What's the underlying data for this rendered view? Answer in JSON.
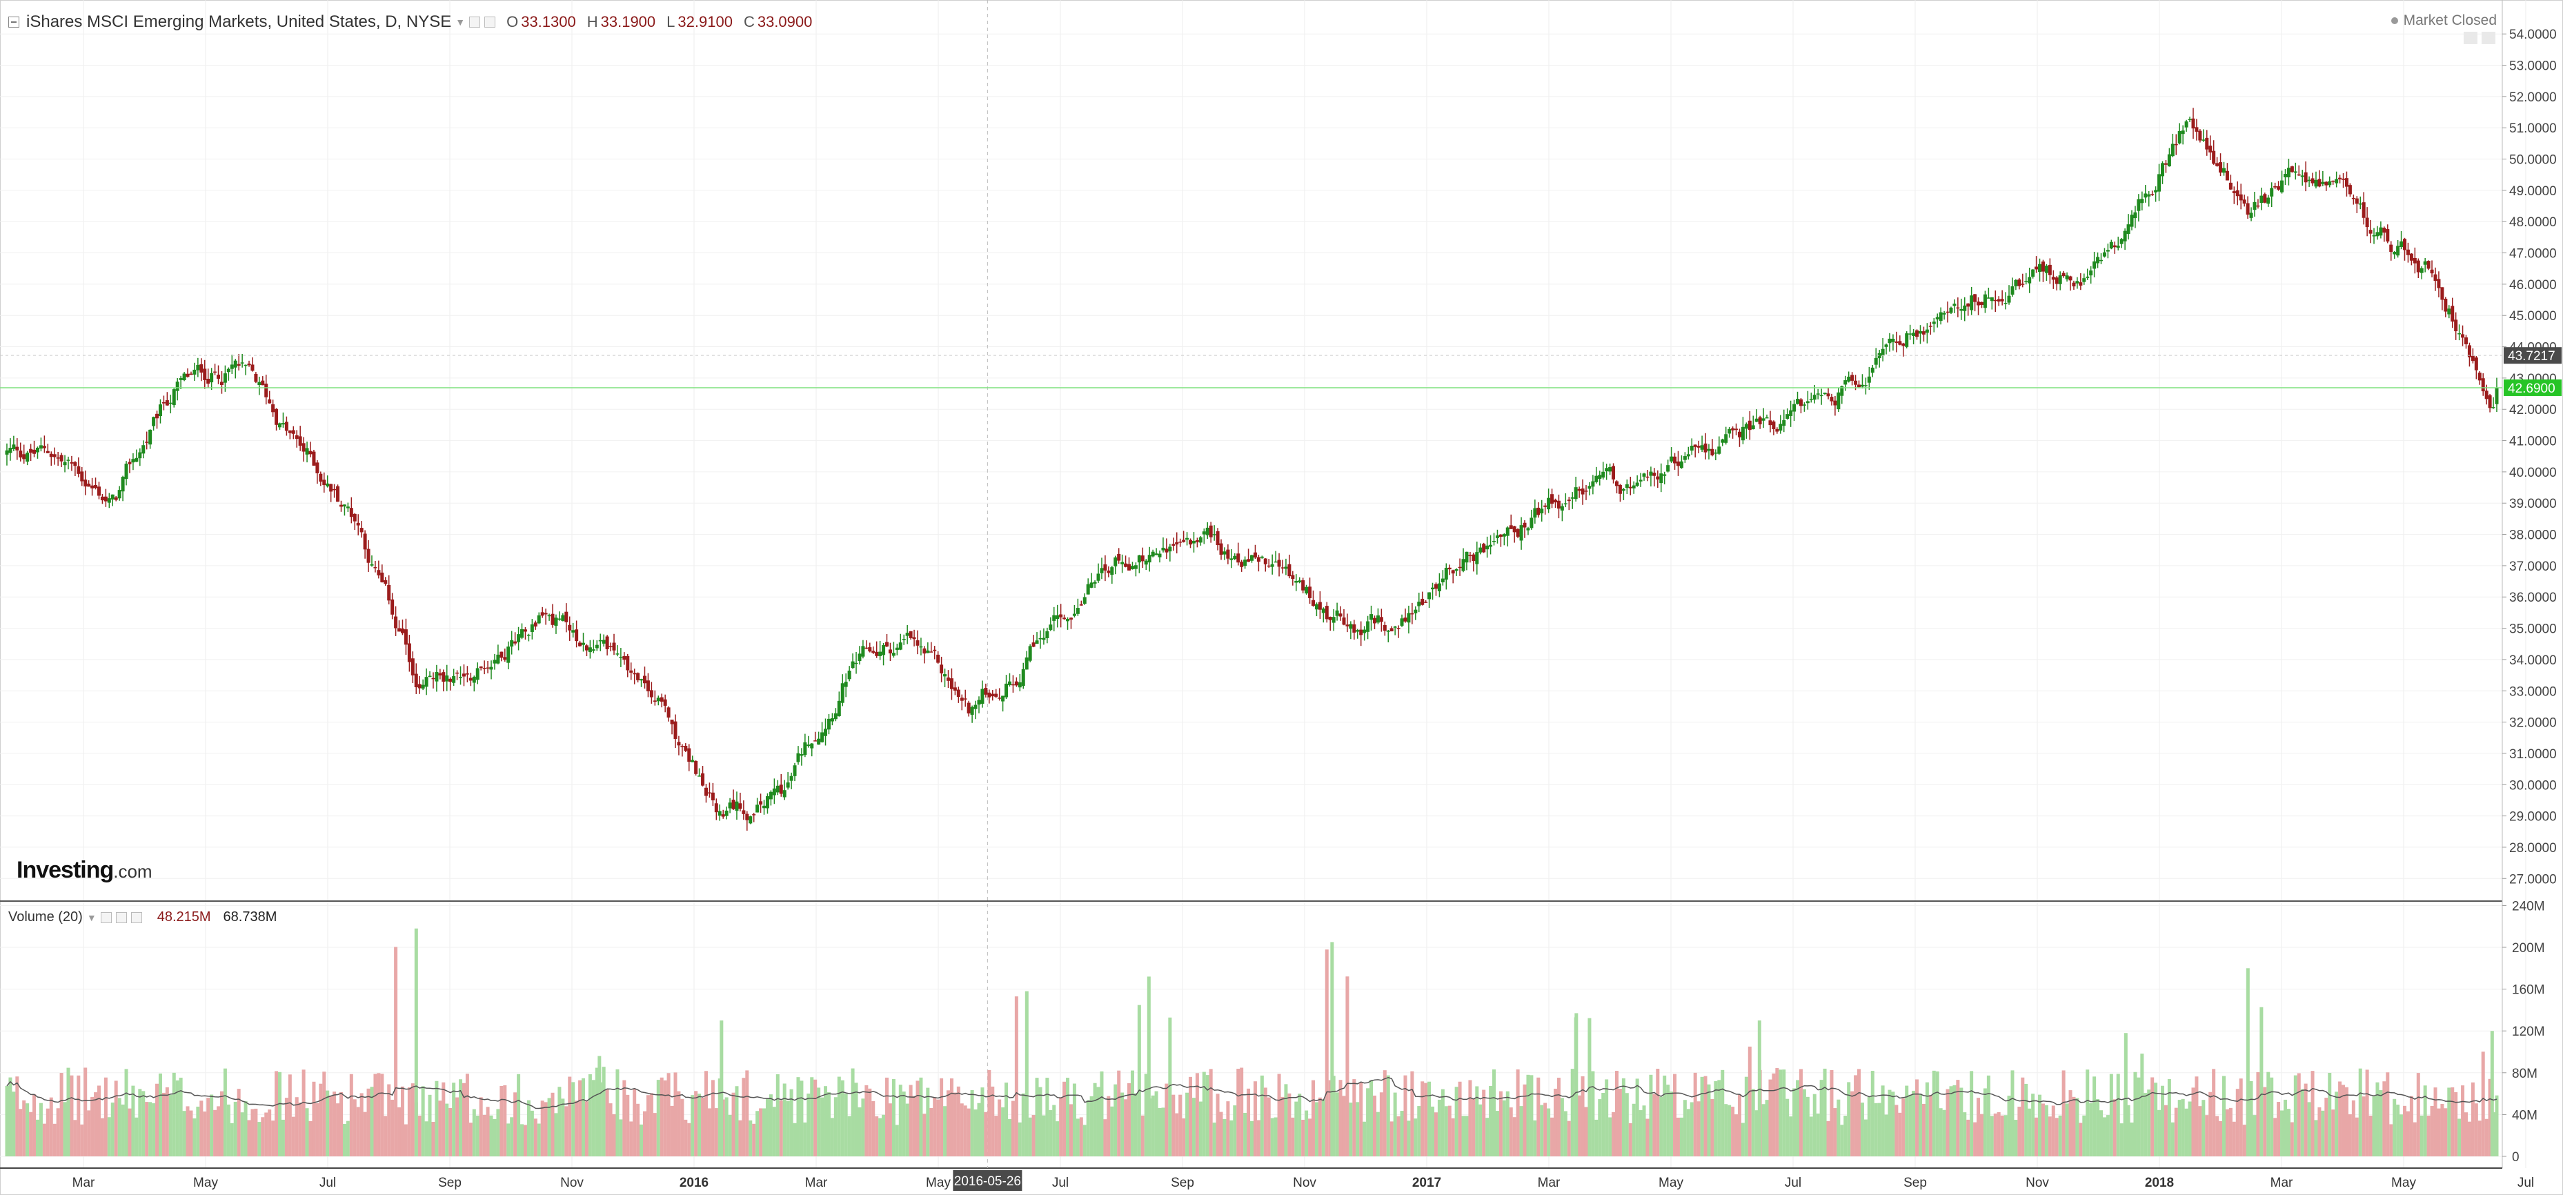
{
  "header": {
    "symbol_title": "iShares MSCI Emerging Markets, United States, D, NYSE",
    "ohlc": [
      {
        "label": "O",
        "value": "33.1300"
      },
      {
        "label": "H",
        "value": "33.1900"
      },
      {
        "label": "L",
        "value": "32.9100"
      },
      {
        "label": "C",
        "value": "33.0900"
      }
    ],
    "market_status": "Market Closed"
  },
  "volume_legend": {
    "title": "Volume (20)",
    "value1": "48.215M",
    "value2": "68.738M"
  },
  "logo": {
    "brand": "Investing",
    "suffix": ".com"
  },
  "crosshair": {
    "date_label": "2016-05-26"
  },
  "price_badges": {
    "marker": {
      "label": "43.7217",
      "value": 43.7217,
      "color": "#4a4a4a"
    },
    "last": {
      "label": "42.6900",
      "value": 42.69,
      "color": "#26c426"
    }
  },
  "colors": {
    "up": "#1f8a1f",
    "down": "#9b1c1c",
    "vol_up": "#a8dca2",
    "vol_down": "#e8a7a7",
    "ma": "#555555",
    "last_line": "#7fe07f"
  },
  "chart_data": [
    {
      "type": "candlestick",
      "title": "iShares MSCI Emerging Markets, United States, D, NYSE",
      "x_ticks": [
        "Mar",
        "May",
        "Jul",
        "Sep",
        "Nov",
        "2016",
        "Mar",
        "May",
        "Jul",
        "Sep",
        "Nov",
        "2017",
        "Mar",
        "May",
        "Jul",
        "Sep",
        "Nov",
        "2018",
        "Mar",
        "May",
        "Jul"
      ],
      "x_tick_bold": [
        "2016",
        "2017",
        "2018"
      ],
      "y_ticks": [
        "27.0000",
        "28.0000",
        "29.0000",
        "30.0000",
        "31.0000",
        "32.0000",
        "33.0000",
        "34.0000",
        "35.0000",
        "36.0000",
        "37.0000",
        "38.0000",
        "39.0000",
        "40.0000",
        "41.0000",
        "42.0000",
        "43.0000",
        "44.0000",
        "45.0000",
        "46.0000",
        "47.0000",
        "48.0000",
        "49.0000",
        "50.0000",
        "51.0000",
        "52.0000",
        "53.0000",
        "54.0000"
      ],
      "ylim": [
        26.3,
        54.6
      ],
      "x": [
        "2015-02",
        "2015-03",
        "2015-04",
        "2015-05",
        "2015-06",
        "2015-07",
        "2015-08",
        "2015-09",
        "2015-10",
        "2015-11",
        "2015-12",
        "2016-01",
        "2016-02",
        "2016-03",
        "2016-04",
        "2016-05",
        "2016-06",
        "2016-07",
        "2016-08",
        "2016-09",
        "2016-10",
        "2016-11",
        "2016-12",
        "2017-01",
        "2017-02",
        "2017-03",
        "2017-04",
        "2017-05",
        "2017-06",
        "2017-07",
        "2017-08",
        "2017-09",
        "2017-10",
        "2017-11",
        "2017-12",
        "2018-01",
        "2018-02",
        "2018-03",
        "2018-04",
        "2018-05",
        "2018-06"
      ],
      "close_approx": [
        40.6,
        39.0,
        42.6,
        43.4,
        40.8,
        38.5,
        33.0,
        33.8,
        35.8,
        34.2,
        32.3,
        28.8,
        29.8,
        33.7,
        34.5,
        32.2,
        34.2,
        36.6,
        37.6,
        37.7,
        37.0,
        35.2,
        35.1,
        37.2,
        38.2,
        39.3,
        39.0,
        40.7,
        41.6,
        42.2,
        44.2,
        45.6,
        46.2,
        46.2,
        47.3,
        51.5,
        48.3,
        49.5,
        47.5,
        46.4,
        42.69
      ],
      "last_price": 42.69
    },
    {
      "type": "bar",
      "title": "Volume (20)",
      "y_ticks": [
        "0",
        "40M",
        "80M",
        "120M",
        "160M",
        "200M",
        "240M"
      ],
      "ylim": [
        0,
        240
      ],
      "unit": "M",
      "typical_range": [
        30,
        90
      ],
      "spikes": [
        {
          "x": "2015-08",
          "value": 218
        },
        {
          "x": "2015-11",
          "value": 96
        },
        {
          "x": "2016-01",
          "value": 130
        },
        {
          "x": "2016-06",
          "value": 158
        },
        {
          "x": "2016-08",
          "value": 172
        },
        {
          "x": "2016-11",
          "value": 205
        },
        {
          "x": "2017-03",
          "value": 137
        },
        {
          "x": "2017-06",
          "value": 130
        },
        {
          "x": "2017-12",
          "value": 118
        },
        {
          "x": "2018-02",
          "value": 180
        },
        {
          "x": "2018-06",
          "value": 120
        }
      ],
      "ma_series_name": "Volume (20)"
    }
  ]
}
